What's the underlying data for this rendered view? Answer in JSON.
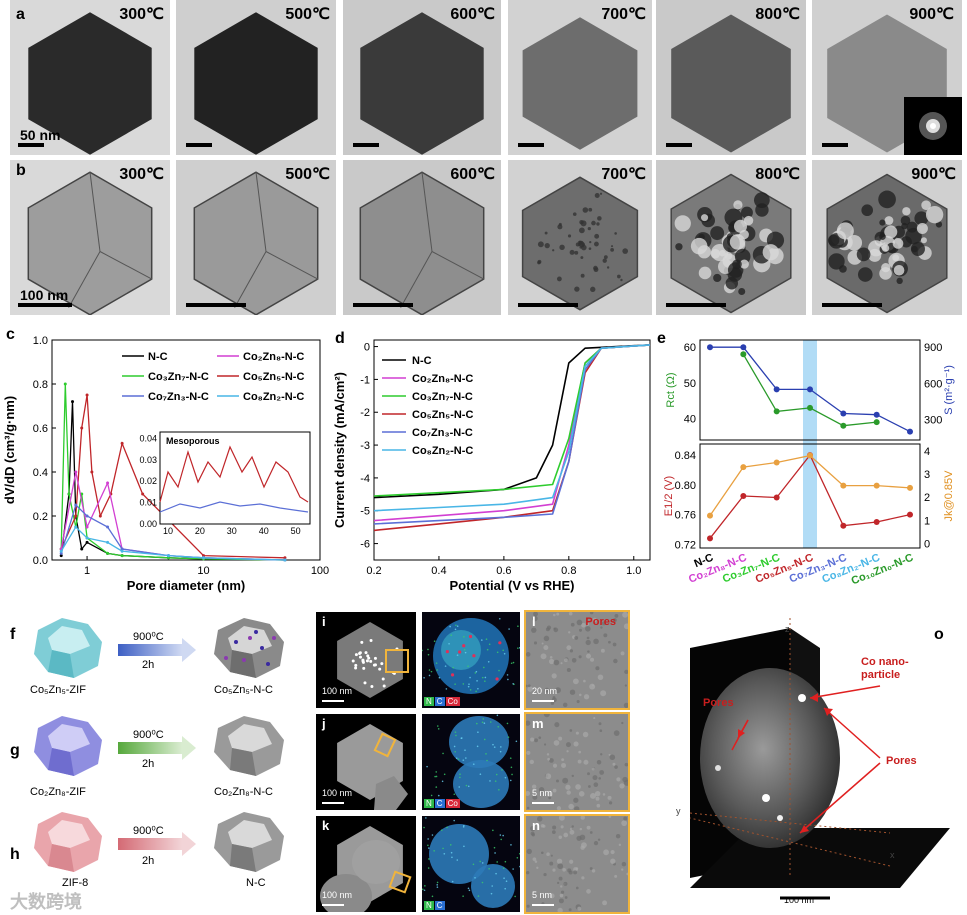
{
  "panel_labels": {
    "a": "a",
    "b": "b",
    "c": "c",
    "d": "d",
    "e": "e",
    "f": "f",
    "g": "g",
    "h": "h",
    "i": "i",
    "j": "j",
    "k": "k",
    "l": "l",
    "m": "m",
    "n": "n",
    "o": "o"
  },
  "row_a": {
    "temps": [
      "300℃",
      "500℃",
      "600℃",
      "700℃",
      "800℃",
      "900℃"
    ],
    "scale": "50 nm"
  },
  "row_b": {
    "temps": [
      "300℃",
      "500℃",
      "600℃",
      "700℃",
      "800℃",
      "900℃"
    ],
    "scale": "100 nm"
  },
  "panel_c": {
    "ylabel": "dV/dD (cm³/g·nm)",
    "xlabel": "Pore diameter (nm)",
    "yticks": [
      "0.0",
      "0.2",
      "0.4",
      "0.6",
      "0.8",
      "1.0"
    ],
    "xticks": [
      "1",
      "10",
      "100"
    ],
    "legend": [
      "N-C",
      "Co₂Zn₈-N-C",
      "Co₃Zn₇-N-C",
      "Co₅Zn₅-N-C",
      "Co₇Zn₃-N-C",
      "Co₈Zn₂-N-C"
    ],
    "inset_title": "Mesoporous",
    "inset_yticks": [
      "0.00",
      "0.01",
      "0.02",
      "0.03",
      "0.04"
    ],
    "inset_xticks": [
      "10",
      "20",
      "30",
      "40",
      "50"
    ]
  },
  "panel_d": {
    "ylabel": "Current density (mA/cm²)",
    "xlabel": "Potential (V vs RHE)",
    "yticks": [
      "0",
      "-1",
      "-2",
      "-3",
      "-4",
      "-5",
      "-6"
    ],
    "xticks": [
      "0.2",
      "0.4",
      "0.6",
      "0.8",
      "1.0"
    ],
    "legend": [
      "N-C",
      "Co₂Zn₈-N-C",
      "Co₃Zn₇-N-C",
      "Co₅Zn₅-N-C",
      "Co₇Zn₃-N-C",
      "Co₈Zn₂-N-C"
    ]
  },
  "panel_e": {
    "top_left_label": "Rct (Ω)",
    "top_right_label": "S (m²·g⁻¹)",
    "bottom_left_label": "E1/2 (V)",
    "bottom_right_label": "Jk@0.85V",
    "top_left_ticks": [
      "60",
      "50",
      "40"
    ],
    "top_right_ticks": [
      "900",
      "600",
      "300"
    ],
    "bottom_left_ticks": [
      "0.84",
      "0.80",
      "0.76",
      "0.72"
    ],
    "bottom_right_ticks": [
      "4",
      "3",
      "2",
      "1",
      "0"
    ],
    "categories": [
      "N-C",
      "Co₂Zn₈-N-C",
      "Co₃Zn₇-N-C",
      "Co₅Zn₅-N-C",
      "Co₇Zn₃-N-C",
      "Co₈Zn₂-N-C",
      "Co₁₀Zn₀-N-C"
    ]
  },
  "schemes": {
    "f": {
      "from": "Co₅Zn₅-ZIF",
      "cond": "900⁰C",
      "time": "2h",
      "to": "Co₅Zn₅-N-C"
    },
    "g": {
      "from": "Co₂Zn₈-ZIF",
      "cond": "900⁰C",
      "time": "2h",
      "to": "Co₂Zn₈-N-C"
    },
    "h": {
      "from": "ZIF-8",
      "cond": "900⁰C",
      "time": "2h",
      "to": "N-C"
    }
  },
  "eds": {
    "i_scale": "100 nm",
    "j_scale": "100 nm",
    "k_scale": "100 nm",
    "l_scale": "20 nm",
    "m_scale": "5 nm",
    "n_scale": "5 nm",
    "n_label": "N",
    "c_label": "C",
    "co_label": "Co",
    "pores": "Pores"
  },
  "panel_o": {
    "co_label": "Co nano-\nparticle",
    "pores_left": "Pores",
    "pores_right": "Pores",
    "scale": "100 nm",
    "axis_z": "z",
    "axis_y": "y",
    "axis_x": "x"
  },
  "watermark": "大数跨境",
  "colors": {
    "nc": "#000000",
    "co2zn8": "#d23fd2",
    "co3zn7": "#2ecc2e",
    "co5zn5": "#c0262a",
    "co7zn3": "#5b6fd6",
    "co8zn2": "#49b6e6",
    "highlight": "#a9d8f5",
    "scheme_box": "#f0b43c"
  },
  "chart_data": [
    {
      "type": "line",
      "title": "",
      "xlabel": "Pore diameter (nm)",
      "ylabel": "dV/dD (cm³/g·nm)",
      "xscale": "log",
      "xlim": [
        0.5,
        100
      ],
      "ylim": [
        0,
        1.0
      ],
      "series": [
        {
          "name": "N-C",
          "x": [
            0.6,
            0.7,
            0.75,
            0.8,
            0.9,
            1.0,
            1.5,
            2,
            5,
            10,
            50
          ],
          "values": [
            0.02,
            0.3,
            0.72,
            0.2,
            0.05,
            0.08,
            0.03,
            0.02,
            0.01,
            0.005,
            0.0
          ]
        },
        {
          "name": "Co₃Zn₇-N-C",
          "x": [
            0.6,
            0.65,
            0.7,
            0.8,
            0.9,
            1.0,
            1.5,
            2,
            5,
            10,
            50
          ],
          "values": [
            0.05,
            0.8,
            0.3,
            0.15,
            0.3,
            0.1,
            0.03,
            0.02,
            0.01,
            0.005,
            0.0
          ]
        },
        {
          "name": "Co₅Zn₅-N-C",
          "x": [
            0.6,
            0.8,
            0.9,
            1.0,
            1.1,
            1.3,
            1.6,
            2,
            3,
            10,
            50
          ],
          "values": [
            0.05,
            0.2,
            0.6,
            0.75,
            0.4,
            0.2,
            0.3,
            0.53,
            0.3,
            0.02,
            0.01
          ]
        },
        {
          "name": "Co₂Zn₈-N-C",
          "x": [
            0.6,
            0.8,
            1.0,
            1.5,
            2,
            5,
            10,
            50
          ],
          "values": [
            0.05,
            0.4,
            0.15,
            0.35,
            0.05,
            0.02,
            0.01,
            0.0
          ]
        },
        {
          "name": "Co₇Zn₃-N-C",
          "x": [
            0.6,
            0.8,
            1.0,
            1.5,
            2,
            5,
            10,
            50
          ],
          "values": [
            0.03,
            0.25,
            0.2,
            0.15,
            0.05,
            0.02,
            0.01,
            0.0
          ]
        },
        {
          "name": "Co₈Zn₂-N-C",
          "x": [
            0.6,
            0.8,
            1.0,
            1.5,
            2,
            5,
            10,
            50
          ],
          "values": [
            0.04,
            0.15,
            0.1,
            0.08,
            0.04,
            0.02,
            0.01,
            0.0
          ]
        }
      ]
    },
    {
      "type": "line",
      "title": "",
      "xlabel": "Potential (V vs RHE)",
      "ylabel": "Current density (mA/cm²)",
      "xlim": [
        0.2,
        1.05
      ],
      "ylim": [
        -6.5,
        0.2
      ],
      "series": [
        {
          "name": "N-C",
          "x": [
            0.2,
            0.4,
            0.6,
            0.7,
            0.75,
            0.8,
            0.85,
            1.05
          ],
          "values": [
            -4.6,
            -4.5,
            -4.35,
            -4.0,
            -3.0,
            -0.5,
            -0.05,
            0.05
          ]
        },
        {
          "name": "Co₂Zn₈-N-C",
          "x": [
            0.2,
            0.4,
            0.6,
            0.75,
            0.8,
            0.85,
            0.9,
            1.05
          ],
          "values": [
            -5.3,
            -5.15,
            -5.0,
            -4.8,
            -3.0,
            -0.5,
            -0.05,
            0.05
          ]
        },
        {
          "name": "Co₃Zn₇-N-C",
          "x": [
            0.2,
            0.4,
            0.6,
            0.75,
            0.8,
            0.85,
            0.9,
            1.05
          ],
          "values": [
            -4.55,
            -4.45,
            -4.35,
            -4.2,
            -2.8,
            -0.5,
            -0.05,
            0.05
          ]
        },
        {
          "name": "Co₅Zn₅-N-C",
          "x": [
            0.2,
            0.4,
            0.6,
            0.75,
            0.8,
            0.85,
            0.9,
            1.05
          ],
          "values": [
            -5.6,
            -5.4,
            -5.2,
            -5.0,
            -3.5,
            -0.8,
            -0.05,
            0.05
          ]
        },
        {
          "name": "Co₇Zn₃-N-C",
          "x": [
            0.2,
            0.4,
            0.6,
            0.75,
            0.8,
            0.85,
            0.9,
            1.05
          ],
          "values": [
            -5.4,
            -5.3,
            -5.2,
            -5.1,
            -3.5,
            -0.7,
            -0.05,
            0.05
          ]
        },
        {
          "name": "Co₈Zn₂-N-C",
          "x": [
            0.2,
            0.4,
            0.6,
            0.75,
            0.8,
            0.85,
            0.9,
            1.05
          ],
          "values": [
            -5.0,
            -4.9,
            -4.8,
            -4.6,
            -3.2,
            -0.6,
            -0.05,
            0.05
          ]
        }
      ]
    },
    {
      "type": "line",
      "title": "",
      "categories": [
        "N-C",
        "Co₂Zn₈-N-C",
        "Co₃Zn₇-N-C",
        "Co₅Zn₅-N-C",
        "Co₇Zn₃-N-C",
        "Co₈Zn₂-N-C",
        "Co₁₀Zn₀-N-C"
      ],
      "series": [
        {
          "name": "S (m²·g⁻¹)",
          "values": [
            900,
            900,
            550,
            550,
            350,
            340,
            200
          ]
        },
        {
          "name": "Rct (Ω)",
          "values": [
            null,
            58,
            42,
            43,
            38,
            39,
            null
          ]
        },
        {
          "name": "E1/2 (V)",
          "values": [
            0.728,
            0.785,
            0.783,
            0.84,
            0.745,
            0.75,
            0.76
          ]
        },
        {
          "name": "Jk@0.85V",
          "values": [
            1.2,
            3.3,
            3.5,
            3.8,
            2.5,
            2.5,
            2.4
          ]
        }
      ]
    }
  ]
}
